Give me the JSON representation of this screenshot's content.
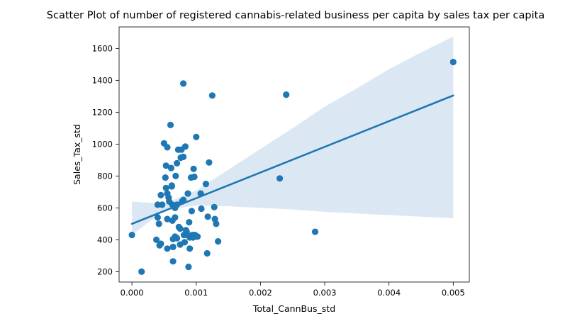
{
  "chart_data": {
    "type": "scatter",
    "title": "Scatter Plot of number of registered cannabis-related business per capita by sales tax per capita",
    "xlabel": "Total_CannBus_std",
    "ylabel": "Sales_Tax_std",
    "xlim": [
      -0.0002,
      0.00525
    ],
    "ylim": [
      135,
      1735
    ],
    "xticks": [
      0.0,
      0.001,
      0.002,
      0.003,
      0.004,
      0.005
    ],
    "xtick_labels": [
      "0.000",
      "0.001",
      "0.002",
      "0.003",
      "0.004",
      "0.005"
    ],
    "yticks": [
      200,
      400,
      600,
      800,
      1000,
      1200,
      1400,
      1600
    ],
    "ytick_labels": [
      "200",
      "400",
      "600",
      "800",
      "1000",
      "1200",
      "1400",
      "1600"
    ],
    "grid": false,
    "legend": "none",
    "colors": {
      "points": "#1f77b4",
      "line": "#1f77b4",
      "band": "#cfe0ef"
    },
    "points": [
      [
        0.0,
        430
      ],
      [
        0.00015,
        200
      ],
      [
        0.00038,
        400
      ],
      [
        0.0004,
        620
      ],
      [
        0.0004,
        540
      ],
      [
        0.00042,
        500
      ],
      [
        0.00043,
        365
      ],
      [
        0.00045,
        680
      ],
      [
        0.00045,
        375
      ],
      [
        0.00047,
        620
      ],
      [
        0.0005,
        1005
      ],
      [
        0.00052,
        790
      ],
      [
        0.00053,
        865
      ],
      [
        0.00053,
        725
      ],
      [
        0.00055,
        980
      ],
      [
        0.00055,
        690
      ],
      [
        0.00055,
        530
      ],
      [
        0.00055,
        345
      ],
      [
        0.00057,
        665
      ],
      [
        0.00058,
        640
      ],
      [
        0.0006,
        1120
      ],
      [
        0.00061,
        850
      ],
      [
        0.00062,
        740
      ],
      [
        0.00062,
        735
      ],
      [
        0.00063,
        620
      ],
      [
        0.00063,
        520
      ],
      [
        0.00064,
        405
      ],
      [
        0.00064,
        355
      ],
      [
        0.00064,
        265
      ],
      [
        0.00066,
        610
      ],
      [
        0.00067,
        600
      ],
      [
        0.00067,
        540
      ],
      [
        0.00067,
        420
      ],
      [
        0.00068,
        800
      ],
      [
        0.0007,
        880
      ],
      [
        0.0007,
        620
      ],
      [
        0.0007,
        410
      ],
      [
        0.00072,
        965
      ],
      [
        0.00073,
        480
      ],
      [
        0.00075,
        470
      ],
      [
        0.00075,
        370
      ],
      [
        0.00076,
        915
      ],
      [
        0.00077,
        965
      ],
      [
        0.00078,
        640
      ],
      [
        0.0008,
        920
      ],
      [
        0.0008,
        1380
      ],
      [
        0.0008,
        650
      ],
      [
        0.00081,
        430
      ],
      [
        0.00082,
        385
      ],
      [
        0.00083,
        985
      ],
      [
        0.00084,
        460
      ],
      [
        0.00085,
        450
      ],
      [
        0.00086,
        430
      ],
      [
        0.00087,
        690
      ],
      [
        0.00088,
        230
      ],
      [
        0.00089,
        510
      ],
      [
        0.0009,
        415
      ],
      [
        0.0009,
        345
      ],
      [
        0.00092,
        790
      ],
      [
        0.00093,
        580
      ],
      [
        0.00094,
        430
      ],
      [
        0.00095,
        415
      ],
      [
        0.00096,
        845
      ],
      [
        0.00097,
        795
      ],
      [
        0.00098,
        430
      ],
      [
        0.00099,
        420
      ],
      [
        0.001,
        1045
      ],
      [
        0.00102,
        420
      ],
      [
        0.00107,
        690
      ],
      [
        0.00108,
        595
      ],
      [
        0.00115,
        750
      ],
      [
        0.00117,
        315
      ],
      [
        0.00118,
        545
      ],
      [
        0.0012,
        885
      ],
      [
        0.00125,
        1305
      ],
      [
        0.00128,
        605
      ],
      [
        0.00129,
        530
      ],
      [
        0.00131,
        500
      ],
      [
        0.00134,
        390
      ],
      [
        0.0023,
        785
      ],
      [
        0.0024,
        1310
      ],
      [
        0.00285,
        450
      ],
      [
        0.005,
        1515
      ]
    ],
    "regression": {
      "x": [
        0.0,
        0.005
      ],
      "y": [
        500,
        1305
      ]
    },
    "confidence_band": {
      "x": [
        0.0,
        0.0005,
        0.001,
        0.0015,
        0.002,
        0.0025,
        0.003,
        0.0035,
        0.004,
        0.0045,
        0.005
      ],
      "upper": [
        640,
        625,
        710,
        840,
        970,
        1100,
        1235,
        1350,
        1470,
        1575,
        1675
      ],
      "lower": [
        430,
        585,
        615,
        610,
        600,
        590,
        575,
        565,
        555,
        545,
        535
      ]
    }
  }
}
